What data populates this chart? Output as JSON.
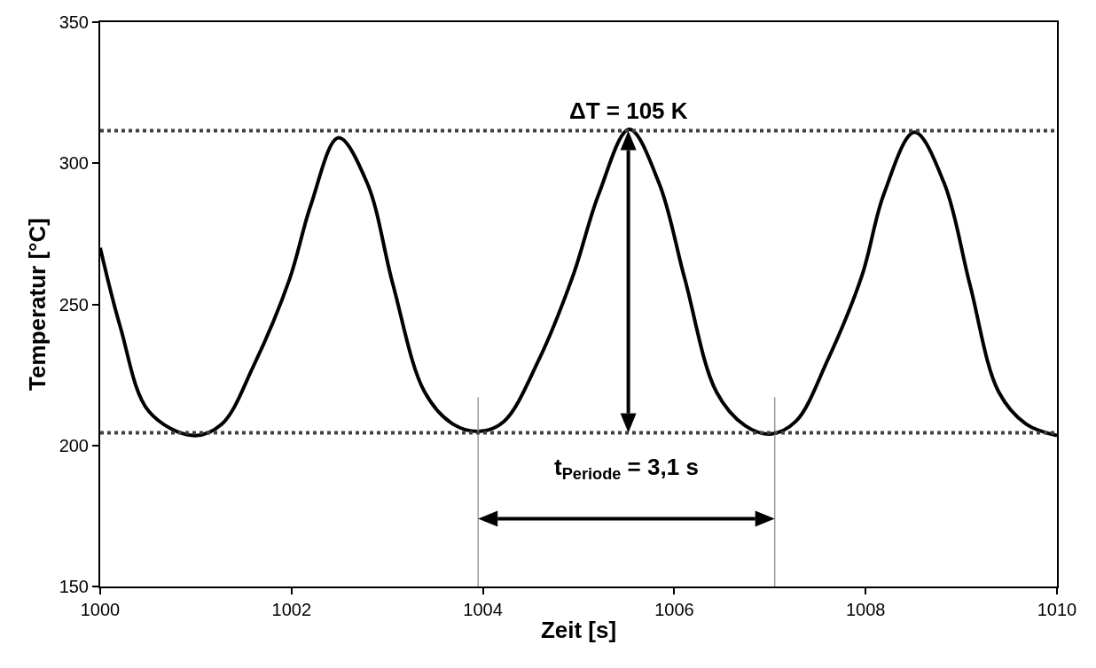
{
  "chart_data": {
    "type": "line",
    "xlabel": "Zeit [s]",
    "ylabel": "Temperatur [°C]",
    "series": [
      {
        "color": "#000000",
        "x": [
          1000,
          1000.21,
          1000.51,
          1000.97,
          1001.27,
          1001.6,
          1001.98,
          1002.2,
          1002.49,
          1002.79,
          1003.06,
          1003.39,
          1003.69,
          1003.97,
          1004.22,
          1004.58,
          1004.94,
          1005.21,
          1005.53,
          1005.84,
          1006.11,
          1006.44,
          1006.74,
          1007.0,
          1007.27,
          1007.6,
          1007.96,
          1008.19,
          1008.51,
          1008.82,
          1009.09,
          1009.39,
          1009.68,
          1010.0
        ],
        "values": [
          270,
          242,
          212,
          203.5,
          207.5,
          228,
          259,
          285,
          309,
          293,
          257,
          219,
          207.5,
          205,
          208.5,
          230,
          260,
          289,
          312,
          293,
          259,
          219,
          207,
          204,
          208.5,
          230,
          260,
          289,
          311,
          293,
          257,
          219,
          207.5,
          203.5
        ]
      },
      {
        "color": "#999999",
        "x": [
          1003.95,
          1003.95
        ],
        "values": [
          150,
          217
        ]
      },
      {
        "color": "#999999",
        "x": [
          1007.05,
          1007.05
        ],
        "values": [
          150,
          217
        ]
      }
    ],
    "xlim": [
      1000,
      1010
    ],
    "xticks": [
      1000,
      1002,
      1004,
      1006,
      1008,
      1010
    ],
    "ylim": [
      150,
      350
    ],
    "yticks": [
      150,
      200,
      250,
      300,
      350
    ],
    "ref_lines": [
      {
        "axis": "y",
        "value": 311.5,
        "color": "#404040",
        "line_style": "dotted"
      },
      {
        "axis": "y",
        "value": 204.5,
        "color": "#404040",
        "line_style": "dotted"
      }
    ],
    "annotations": [
      "ΔT = 105 K",
      "t$_{Periode}$ = 3,1 s"
    ],
    "grid": false,
    "marker": "none",
    "line_style": "solid"
  }
}
